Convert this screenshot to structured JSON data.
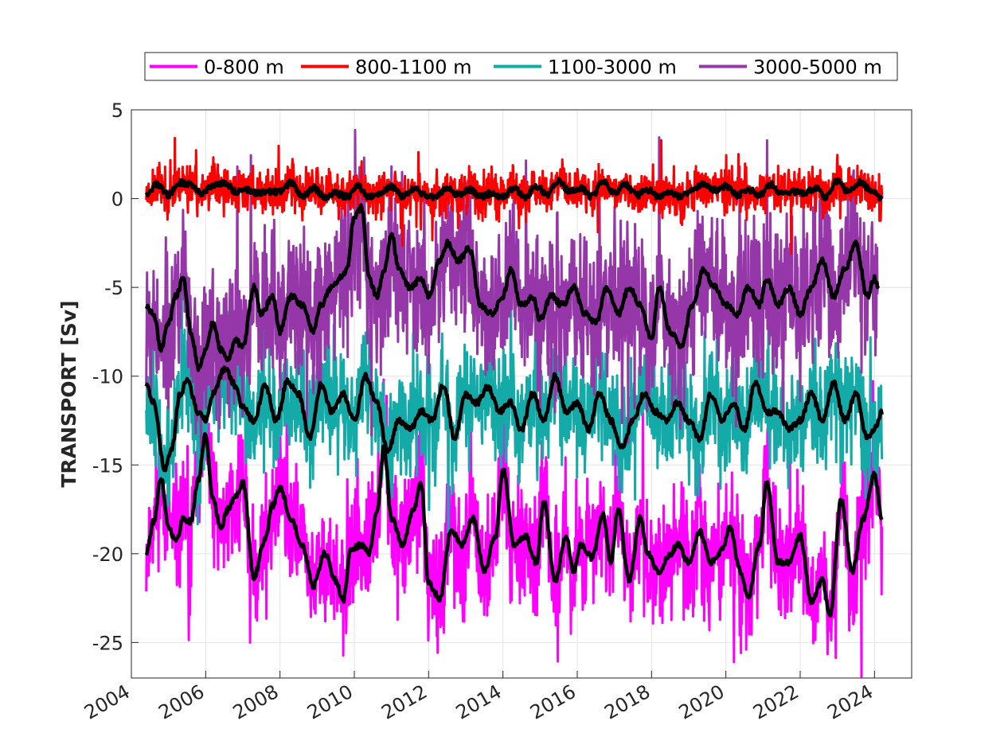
{
  "chart_data": {
    "type": "line",
    "title": "",
    "xlabel": "",
    "ylabel": "TRANSPORT [Sv]",
    "xlim": [
      2004,
      2025
    ],
    "ylim": [
      -27,
      5
    ],
    "xticks": [
      2004,
      2006,
      2008,
      2010,
      2012,
      2014,
      2016,
      2018,
      2020,
      2022,
      2024
    ],
    "xtick_labels": [
      "2004",
      "2006",
      "2008",
      "2010",
      "2012",
      "2014",
      "2016",
      "2018",
      "2020",
      "2022",
      "2024"
    ],
    "yticks": [
      5,
      0,
      -5,
      -10,
      -15,
      -20,
      -25
    ],
    "ytick_labels": [
      "5",
      "0",
      "-5",
      "-10",
      "-15",
      "-20",
      "-25"
    ],
    "grid": true,
    "legend_position": "top-outside",
    "smoothed_color": "#000000",
    "series": [
      {
        "name": "0-800 m",
        "color": "#ff00ff",
        "smoothed": [
          [
            2004.4,
            -20.0
          ],
          [
            2004.6,
            -18.2
          ],
          [
            2004.8,
            -15.7
          ],
          [
            2005.0,
            -18.5
          ],
          [
            2005.2,
            -19.3
          ],
          [
            2005.4,
            -18.0
          ],
          [
            2005.6,
            -18.2
          ],
          [
            2005.8,
            -15.8
          ],
          [
            2006.0,
            -13.3
          ],
          [
            2006.2,
            -17.0
          ],
          [
            2006.4,
            -18.5
          ],
          [
            2006.6,
            -17.5
          ],
          [
            2006.8,
            -16.8
          ],
          [
            2007.0,
            -16.0
          ],
          [
            2007.3,
            -21.3
          ],
          [
            2007.6,
            -19.2
          ],
          [
            2007.8,
            -17.3
          ],
          [
            2008.0,
            -16.3
          ],
          [
            2008.3,
            -18.0
          ],
          [
            2008.6,
            -19.5
          ],
          [
            2008.9,
            -21.8
          ],
          [
            2009.2,
            -20.0
          ],
          [
            2009.5,
            -21.5
          ],
          [
            2009.7,
            -22.7
          ],
          [
            2009.9,
            -19.8
          ],
          [
            2010.2,
            -19.5
          ],
          [
            2010.4,
            -20.0
          ],
          [
            2010.6,
            -17.8
          ],
          [
            2010.8,
            -14.0
          ],
          [
            2011.0,
            -18.0
          ],
          [
            2011.3,
            -19.5
          ],
          [
            2011.6,
            -17.5
          ],
          [
            2011.8,
            -16.0
          ],
          [
            2012.0,
            -21.7
          ],
          [
            2012.3,
            -22.5
          ],
          [
            2012.6,
            -18.7
          ],
          [
            2012.9,
            -19.5
          ],
          [
            2013.2,
            -18.0
          ],
          [
            2013.5,
            -21.0
          ],
          [
            2013.8,
            -19.0
          ],
          [
            2014.0,
            -15.2
          ],
          [
            2014.3,
            -19.5
          ],
          [
            2014.6,
            -19.0
          ],
          [
            2014.9,
            -20.5
          ],
          [
            2015.1,
            -17.0
          ],
          [
            2015.4,
            -21.5
          ],
          [
            2015.7,
            -19.0
          ],
          [
            2015.9,
            -21.0
          ],
          [
            2016.1,
            -19.5
          ],
          [
            2016.4,
            -20.2
          ],
          [
            2016.7,
            -17.8
          ],
          [
            2016.9,
            -20.5
          ],
          [
            2017.1,
            -17.5
          ],
          [
            2017.4,
            -21.5
          ],
          [
            2017.7,
            -18.0
          ],
          [
            2017.9,
            -20.0
          ],
          [
            2018.2,
            -21.0
          ],
          [
            2018.5,
            -20.0
          ],
          [
            2018.7,
            -19.5
          ],
          [
            2019.0,
            -20.5
          ],
          [
            2019.3,
            -18.8
          ],
          [
            2019.6,
            -20.5
          ],
          [
            2019.9,
            -19.8
          ],
          [
            2020.1,
            -18.5
          ],
          [
            2020.4,
            -21.0
          ],
          [
            2020.6,
            -22.5
          ],
          [
            2020.9,
            -19.5
          ],
          [
            2021.1,
            -16.0
          ],
          [
            2021.4,
            -20.5
          ],
          [
            2021.7,
            -20.5
          ],
          [
            2022.0,
            -19.0
          ],
          [
            2022.3,
            -22.7
          ],
          [
            2022.6,
            -21.5
          ],
          [
            2022.8,
            -23.5
          ],
          [
            2023.1,
            -17.0
          ],
          [
            2023.4,
            -21.0
          ],
          [
            2023.7,
            -18.0
          ],
          [
            2024.0,
            -15.5
          ],
          [
            2024.2,
            -18.0
          ]
        ]
      },
      {
        "name": "800-1100 m",
        "color": "#ff0000",
        "smoothed": [
          [
            2004.4,
            0.3
          ],
          [
            2004.7,
            0.8
          ],
          [
            2005.0,
            0.2
          ],
          [
            2005.3,
            0.9
          ],
          [
            2005.6,
            0.8
          ],
          [
            2005.9,
            0.3
          ],
          [
            2006.2,
            0.7
          ],
          [
            2006.5,
            0.9
          ],
          [
            2006.8,
            0.4
          ],
          [
            2007.1,
            0.5
          ],
          [
            2007.4,
            0.3
          ],
          [
            2007.7,
            0.4
          ],
          [
            2008.0,
            0.4
          ],
          [
            2008.3,
            0.9
          ],
          [
            2008.6,
            0.1
          ],
          [
            2008.9,
            0.6
          ],
          [
            2009.2,
            0.1
          ],
          [
            2009.5,
            0.3
          ],
          [
            2009.8,
            0.1
          ],
          [
            2010.1,
            0.7
          ],
          [
            2010.4,
            0.1
          ],
          [
            2010.7,
            0.3
          ],
          [
            2011.0,
            0.7
          ],
          [
            2011.3,
            0.1
          ],
          [
            2011.6,
            0.6
          ],
          [
            2011.9,
            0.2
          ],
          [
            2012.2,
            0.1
          ],
          [
            2012.5,
            0.6
          ],
          [
            2012.8,
            0.2
          ],
          [
            2013.1,
            0.5
          ],
          [
            2013.4,
            0.1
          ],
          [
            2013.7,
            0.3
          ],
          [
            2014.0,
            0.1
          ],
          [
            2014.3,
            0.6
          ],
          [
            2014.6,
            0.1
          ],
          [
            2014.9,
            0.7
          ],
          [
            2015.2,
            0.2
          ],
          [
            2015.5,
            1.0
          ],
          [
            2015.8,
            0.4
          ],
          [
            2016.1,
            0.6
          ],
          [
            2016.4,
            0.1
          ],
          [
            2016.7,
            1.0
          ],
          [
            2017.0,
            0.3
          ],
          [
            2017.3,
            0.8
          ],
          [
            2017.6,
            0.2
          ],
          [
            2017.9,
            0.5
          ],
          [
            2018.2,
            0.1
          ],
          [
            2018.5,
            0.3
          ],
          [
            2018.8,
            0.1
          ],
          [
            2019.1,
            0.5
          ],
          [
            2019.4,
            0.8
          ],
          [
            2019.7,
            0.5
          ],
          [
            2020.0,
            0.7
          ],
          [
            2020.3,
            0.2
          ],
          [
            2020.6,
            0.5
          ],
          [
            2020.9,
            0.2
          ],
          [
            2021.2,
            0.8
          ],
          [
            2021.5,
            0.3
          ],
          [
            2021.8,
            0.4
          ],
          [
            2022.1,
            0.3
          ],
          [
            2022.4,
            0.6
          ],
          [
            2022.7,
            0.1
          ],
          [
            2023.0,
            1.0
          ],
          [
            2023.3,
            0.4
          ],
          [
            2023.6,
            0.9
          ],
          [
            2023.9,
            0.5
          ],
          [
            2024.2,
            0.0
          ]
        ]
      },
      {
        "name": "1100-3000 m",
        "color": "#14aaa8",
        "smoothed": [
          [
            2004.4,
            -10.5
          ],
          [
            2004.6,
            -11.5
          ],
          [
            2004.9,
            -15.2
          ],
          [
            2005.1,
            -14.0
          ],
          [
            2005.3,
            -11.0
          ],
          [
            2005.5,
            -10.3
          ],
          [
            2005.8,
            -12.0
          ],
          [
            2006.0,
            -12.5
          ],
          [
            2006.2,
            -11.0
          ],
          [
            2006.5,
            -9.6
          ],
          [
            2006.8,
            -10.5
          ],
          [
            2007.0,
            -11.8
          ],
          [
            2007.3,
            -12.5
          ],
          [
            2007.6,
            -10.5
          ],
          [
            2007.9,
            -12.5
          ],
          [
            2008.2,
            -10.3
          ],
          [
            2008.5,
            -11.0
          ],
          [
            2008.8,
            -13.5
          ],
          [
            2009.1,
            -10.5
          ],
          [
            2009.4,
            -12.0
          ],
          [
            2009.7,
            -11.0
          ],
          [
            2010.0,
            -12.5
          ],
          [
            2010.3,
            -10.0
          ],
          [
            2010.6,
            -11.5
          ],
          [
            2010.9,
            -14.2
          ],
          [
            2011.2,
            -12.5
          ],
          [
            2011.5,
            -13.0
          ],
          [
            2011.8,
            -12.0
          ],
          [
            2012.1,
            -12.5
          ],
          [
            2012.4,
            -10.5
          ],
          [
            2012.7,
            -13.5
          ],
          [
            2013.0,
            -11.0
          ],
          [
            2013.3,
            -11.5
          ],
          [
            2013.6,
            -10.6
          ],
          [
            2013.9,
            -12.0
          ],
          [
            2014.2,
            -11.5
          ],
          [
            2014.5,
            -13.0
          ],
          [
            2014.8,
            -11.0
          ],
          [
            2015.1,
            -12.5
          ],
          [
            2015.4,
            -10.0
          ],
          [
            2015.7,
            -12.0
          ],
          [
            2016.0,
            -11.5
          ],
          [
            2016.3,
            -13.0
          ],
          [
            2016.6,
            -11.0
          ],
          [
            2016.9,
            -12.5
          ],
          [
            2017.2,
            -14.0
          ],
          [
            2017.5,
            -12.5
          ],
          [
            2017.8,
            -11.0
          ],
          [
            2018.1,
            -12.0
          ],
          [
            2018.4,
            -12.5
          ],
          [
            2018.7,
            -11.5
          ],
          [
            2019.0,
            -12.5
          ],
          [
            2019.3,
            -13.5
          ],
          [
            2019.6,
            -11.0
          ],
          [
            2019.9,
            -12.5
          ],
          [
            2020.2,
            -11.5
          ],
          [
            2020.5,
            -13.0
          ],
          [
            2020.8,
            -10.3
          ],
          [
            2021.1,
            -12.0
          ],
          [
            2021.4,
            -12.0
          ],
          [
            2021.7,
            -13.0
          ],
          [
            2022.0,
            -12.5
          ],
          [
            2022.3,
            -11.0
          ],
          [
            2022.6,
            -12.5
          ],
          [
            2022.9,
            -10.4
          ],
          [
            2023.2,
            -12.5
          ],
          [
            2023.5,
            -11.0
          ],
          [
            2023.8,
            -13.5
          ],
          [
            2024.0,
            -13.0
          ],
          [
            2024.2,
            -12.0
          ]
        ]
      },
      {
        "name": "3000-5000 m",
        "color": "#9637a9",
        "smoothed": [
          [
            2004.4,
            -6.0
          ],
          [
            2004.6,
            -6.5
          ],
          [
            2004.8,
            -8.5
          ],
          [
            2005.0,
            -7.0
          ],
          [
            2005.2,
            -5.5
          ],
          [
            2005.4,
            -4.5
          ],
          [
            2005.6,
            -7.5
          ],
          [
            2005.8,
            -9.5
          ],
          [
            2006.0,
            -8.5
          ],
          [
            2006.2,
            -7.0
          ],
          [
            2006.4,
            -8.5
          ],
          [
            2006.6,
            -9.0
          ],
          [
            2006.8,
            -8.0
          ],
          [
            2007.0,
            -8.3
          ],
          [
            2007.3,
            -5.0
          ],
          [
            2007.5,
            -6.5
          ],
          [
            2007.8,
            -5.5
          ],
          [
            2008.0,
            -7.5
          ],
          [
            2008.3,
            -5.5
          ],
          [
            2008.6,
            -6.0
          ],
          [
            2008.9,
            -7.5
          ],
          [
            2009.1,
            -6.0
          ],
          [
            2009.4,
            -5.0
          ],
          [
            2009.6,
            -4.5
          ],
          [
            2009.8,
            -4.0
          ],
          [
            2010.0,
            -1.0
          ],
          [
            2010.2,
            -0.5
          ],
          [
            2010.4,
            -4.5
          ],
          [
            2010.6,
            -5.5
          ],
          [
            2010.8,
            -4.0
          ],
          [
            2011.0,
            -2.0
          ],
          [
            2011.2,
            -4.0
          ],
          [
            2011.5,
            -5.0
          ],
          [
            2011.8,
            -4.5
          ],
          [
            2012.0,
            -5.5
          ],
          [
            2012.3,
            -3.5
          ],
          [
            2012.5,
            -2.5
          ],
          [
            2012.8,
            -3.5
          ],
          [
            2013.1,
            -2.8
          ],
          [
            2013.4,
            -6.0
          ],
          [
            2013.7,
            -6.5
          ],
          [
            2014.0,
            -5.5
          ],
          [
            2014.2,
            -4.0
          ],
          [
            2014.5,
            -6.0
          ],
          [
            2014.8,
            -5.5
          ],
          [
            2015.0,
            -6.8
          ],
          [
            2015.3,
            -5.5
          ],
          [
            2015.6,
            -6.0
          ],
          [
            2015.9,
            -5.0
          ],
          [
            2016.2,
            -6.5
          ],
          [
            2016.5,
            -7.0
          ],
          [
            2016.8,
            -5.0
          ],
          [
            2017.1,
            -6.5
          ],
          [
            2017.4,
            -5.0
          ],
          [
            2017.7,
            -6.0
          ],
          [
            2018.0,
            -8.0
          ],
          [
            2018.2,
            -5.0
          ],
          [
            2018.5,
            -7.5
          ],
          [
            2018.8,
            -8.3
          ],
          [
            2019.1,
            -6.0
          ],
          [
            2019.4,
            -4.0
          ],
          [
            2019.7,
            -5.0
          ],
          [
            2020.0,
            -6.0
          ],
          [
            2020.3,
            -6.5
          ],
          [
            2020.6,
            -5.0
          ],
          [
            2020.9,
            -6.0
          ],
          [
            2021.1,
            -4.5
          ],
          [
            2021.4,
            -6.0
          ],
          [
            2021.7,
            -5.0
          ],
          [
            2022.0,
            -6.5
          ],
          [
            2022.3,
            -5.0
          ],
          [
            2022.6,
            -3.5
          ],
          [
            2022.9,
            -5.5
          ],
          [
            2023.2,
            -4.0
          ],
          [
            2023.5,
            -2.5
          ],
          [
            2023.8,
            -5.5
          ],
          [
            2024.0,
            -4.5
          ],
          [
            2024.1,
            -5.0
          ]
        ]
      }
    ]
  }
}
